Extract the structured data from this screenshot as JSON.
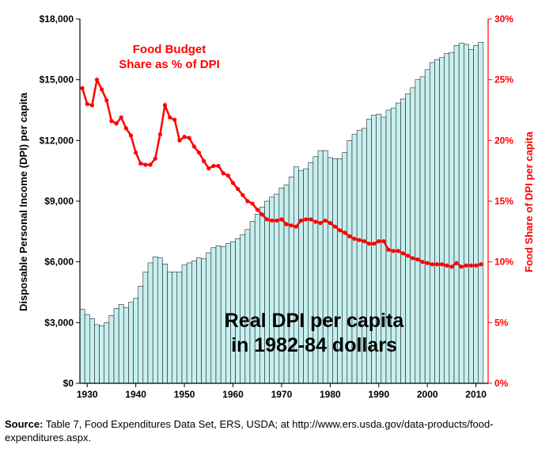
{
  "chart_data": {
    "type": "bar+line",
    "x_ticks": [
      "1930",
      "1940",
      "1950",
      "1960",
      "1970",
      "1980",
      "1990",
      "2000",
      "2010"
    ],
    "left_axis": {
      "label": "Disposable Personal Income (DPI) per capita",
      "ticks": [
        "$0",
        "$3,000",
        "$6,000",
        "$9,000",
        "$12,000",
        "$15,000",
        "$18,000"
      ],
      "ylim": [
        0,
        18000
      ]
    },
    "right_axis": {
      "label": "Food Share of DPI per capita",
      "ticks": [
        "0%",
        "5%",
        "10%",
        "15%",
        "20%",
        "25%",
        "30%"
      ],
      "ylim": [
        0,
        30
      ]
    },
    "grid": false,
    "annotations": {
      "line_label_1": "Food Budget",
      "line_label_2": "Share as % of DPI",
      "bar_label_1": "Real DPI per capita",
      "bar_label_2": "in 1982-84 dollars"
    },
    "colors": {
      "bars": "#c6f0ef",
      "bar_stroke": "#000000",
      "line": "#ff0000"
    },
    "series": [
      {
        "type": "bar",
        "axis": "left",
        "x": [
          1929,
          1930,
          1931,
          1932,
          1933,
          1934,
          1935,
          1936,
          1937,
          1938,
          1939,
          1940,
          1941,
          1942,
          1943,
          1944,
          1945,
          1946,
          1947,
          1948,
          1949,
          1950,
          1951,
          1952,
          1953,
          1954,
          1955,
          1956,
          1957,
          1958,
          1959,
          1960,
          1961,
          1962,
          1963,
          1964,
          1965,
          1966,
          1967,
          1968,
          1969,
          1970,
          1971,
          1972,
          1973,
          1974,
          1975,
          1976,
          1977,
          1978,
          1979,
          1980,
          1981,
          1982,
          1983,
          1984,
          1985,
          1986,
          1987,
          1988,
          1989,
          1990,
          1991,
          1992,
          1993,
          1994,
          1995,
          1996,
          1997,
          1998,
          1999,
          2000,
          2001,
          2002,
          2003,
          2004,
          2005,
          2006,
          2007,
          2008,
          2009,
          2010,
          2011
        ],
        "values": [
          3650,
          3400,
          3200,
          2900,
          2850,
          3000,
          3350,
          3700,
          3900,
          3750,
          4000,
          4200,
          4800,
          5500,
          5950,
          6250,
          6200,
          5900,
          5500,
          5500,
          5500,
          5850,
          5950,
          6050,
          6200,
          6150,
          6450,
          6700,
          6800,
          6750,
          6900,
          7000,
          7150,
          7350,
          7600,
          8000,
          8350,
          8700,
          9000,
          9200,
          9350,
          9650,
          9800,
          10200,
          10700,
          10500,
          10600,
          10900,
          11200,
          11500,
          11500,
          11150,
          11100,
          11100,
          11400,
          12000,
          12300,
          12500,
          12600,
          13050,
          13250,
          13300,
          13150,
          13500,
          13600,
          13850,
          14050,
          14300,
          14600,
          15000,
          15150,
          15500,
          15850,
          16000,
          16100,
          16300,
          16350,
          16700,
          16800,
          16750,
          16500,
          16700,
          16850
        ]
      },
      {
        "type": "line",
        "axis": "right",
        "x": [
          1929,
          1930,
          1931,
          1932,
          1933,
          1934,
          1935,
          1936,
          1937,
          1938,
          1939,
          1940,
          1941,
          1942,
          1943,
          1944,
          1945,
          1946,
          1947,
          1948,
          1949,
          1950,
          1951,
          1952,
          1953,
          1954,
          1955,
          1956,
          1957,
          1958,
          1959,
          1960,
          1961,
          1962,
          1963,
          1964,
          1965,
          1966,
          1967,
          1968,
          1969,
          1970,
          1971,
          1972,
          1973,
          1974,
          1975,
          1976,
          1977,
          1978,
          1979,
          1980,
          1981,
          1982,
          1983,
          1984,
          1985,
          1986,
          1987,
          1988,
          1989,
          1990,
          1991,
          1992,
          1993,
          1994,
          1995,
          1996,
          1997,
          1998,
          1999,
          2000,
          2001,
          2002,
          2003,
          2004,
          2005,
          2006,
          2007,
          2008,
          2009,
          2010,
          2011
        ],
        "values": [
          24.3,
          23.0,
          22.9,
          25.0,
          24.2,
          23.3,
          21.6,
          21.4,
          21.9,
          21.0,
          20.4,
          19.0,
          18.1,
          18.0,
          18.0,
          18.5,
          20.5,
          22.9,
          21.9,
          21.7,
          20.0,
          20.3,
          20.2,
          19.5,
          19.0,
          18.3,
          17.7,
          17.9,
          17.9,
          17.3,
          17.1,
          16.5,
          16.0,
          15.5,
          15.0,
          14.8,
          14.3,
          13.9,
          13.5,
          13.4,
          13.4,
          13.5,
          13.1,
          13.0,
          12.9,
          13.4,
          13.5,
          13.5,
          13.3,
          13.2,
          13.4,
          13.2,
          12.9,
          12.6,
          12.4,
          12.1,
          11.9,
          11.8,
          11.7,
          11.5,
          11.5,
          11.7,
          11.7,
          11.0,
          10.9,
          10.9,
          10.7,
          10.5,
          10.3,
          10.2,
          10.0,
          9.9,
          9.8,
          9.8,
          9.8,
          9.7,
          9.6,
          9.9,
          9.6,
          9.7,
          9.7,
          9.7,
          9.8
        ]
      }
    ]
  },
  "source": {
    "label": "Source:",
    "text": " Table 7, Food Expenditures Data Set, ERS, USDA; at http://www.ers.usda.gov/data-products/food-expenditures.aspx."
  }
}
